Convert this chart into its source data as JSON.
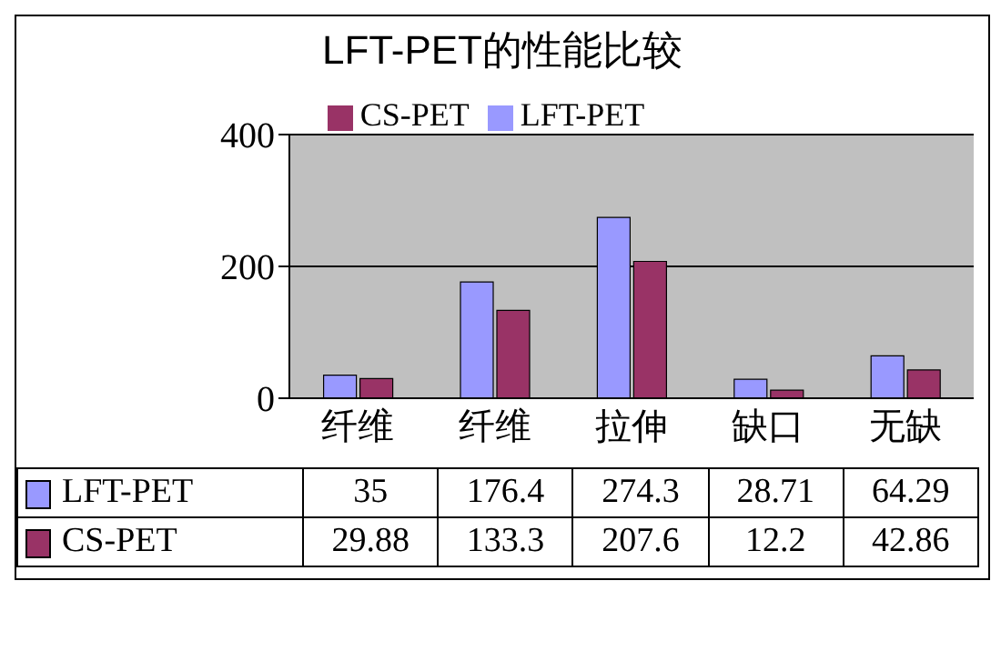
{
  "chart_data": {
    "type": "bar",
    "title": "LFT-PET的性能比较",
    "categories": [
      "纤维",
      "纤维",
      "拉伸",
      "缺口",
      "无缺"
    ],
    "series": [
      {
        "name": "LFT-PET",
        "color": "#9999ff",
        "values": [
          35,
          176.4,
          274.3,
          28.71,
          64.29
        ]
      },
      {
        "name": "CS-PET",
        "color": "#993366",
        "values": [
          29.88,
          133.3,
          207.6,
          12.2,
          42.86
        ]
      }
    ],
    "ylim": [
      0,
      400
    ],
    "yticks": [
      0,
      200,
      400
    ],
    "grid": "y",
    "legend": "top",
    "data_labels": true
  }
}
